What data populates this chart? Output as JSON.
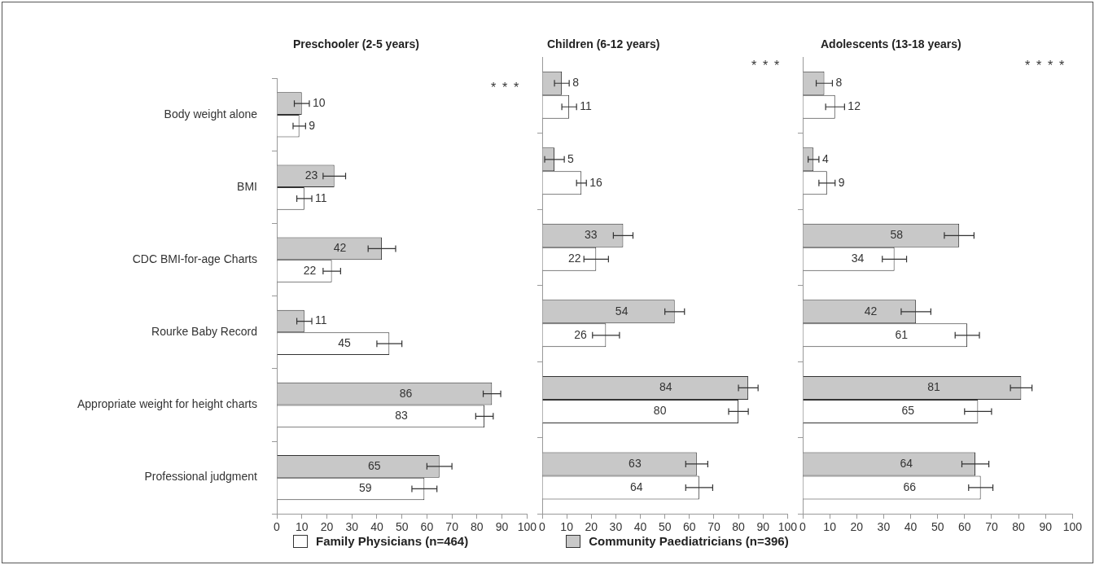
{
  "chart_data": [
    {
      "type": "bar",
      "orientation": "horizontal",
      "title": "Preschooler (2-5 years)",
      "categories": [
        "Body weight alone",
        "BMI",
        "CDC BMI-for-age Charts",
        "Rourke Baby Record",
        "Appropriate weight for height charts",
        "Professional judgment"
      ],
      "xlim": [
        0,
        100
      ],
      "xticks": [
        0,
        10,
        20,
        30,
        40,
        50,
        60,
        70,
        80,
        90,
        100
      ],
      "grid": false,
      "legend": "bottom",
      "data_labels": true,
      "series": [
        {
          "name": "Community Paediatricians (n=396)",
          "color": "#c8c8c8",
          "values": [
            10,
            23,
            42,
            11,
            86,
            65
          ],
          "errors": [
            3,
            4.5,
            5.5,
            3,
            3.5,
            5
          ]
        },
        {
          "name": "Family Physicians (n=464)",
          "color": "#ffffff",
          "values": [
            9,
            11,
            22,
            45,
            83,
            59
          ],
          "errors": [
            2.5,
            3,
            3.5,
            5,
            3.5,
            5
          ]
        }
      ],
      "annotations": [
        "*",
        "*",
        "*"
      ]
    },
    {
      "type": "bar",
      "orientation": "horizontal",
      "title": "Children (6-12 years)",
      "categories": [
        null,
        null,
        null,
        null,
        null,
        null
      ],
      "xlim": [
        0,
        100
      ],
      "xticks": [
        0,
        10,
        20,
        30,
        40,
        50,
        60,
        70,
        80,
        90,
        100
      ],
      "grid": false,
      "tick_labels": "x",
      "data_labels": true,
      "series": [
        {
          "color": "#c8c8c8",
          "values": [
            8,
            5,
            33,
            54,
            84,
            63
          ],
          "errors": [
            3,
            4,
            4,
            4,
            4,
            4.5
          ]
        },
        {
          "color": "#ffffff",
          "values": [
            11,
            16,
            22,
            26,
            80,
            64
          ],
          "errors": [
            3,
            2,
            5,
            5.5,
            4,
            5.5
          ]
        }
      ],
      "annotations": [
        "*",
        "*",
        "*"
      ]
    },
    {
      "type": "bar",
      "orientation": "horizontal",
      "title": "Adolescents (13-18 years)",
      "categories": [
        null,
        null,
        null,
        null,
        null,
        null
      ],
      "xlim": [
        0,
        100
      ],
      "xticks": [
        0,
        10,
        20,
        30,
        40,
        50,
        60,
        70,
        80,
        90,
        100
      ],
      "grid": false,
      "tick_labels": "x",
      "data_labels": true,
      "series": [
        {
          "color": "#c8c8c8",
          "values": [
            8,
            4,
            58,
            42,
            81,
            64
          ],
          "errors": [
            3,
            2,
            5.5,
            5.5,
            4,
            5
          ]
        },
        {
          "color": "#ffffff",
          "values": [
            12,
            9,
            34,
            61,
            65,
            66
          ],
          "errors": [
            3.5,
            3,
            4.5,
            4.5,
            5,
            4.5
          ]
        }
      ],
      "annotations": [
        "*",
        "*",
        "*",
        "*"
      ]
    }
  ]
}
